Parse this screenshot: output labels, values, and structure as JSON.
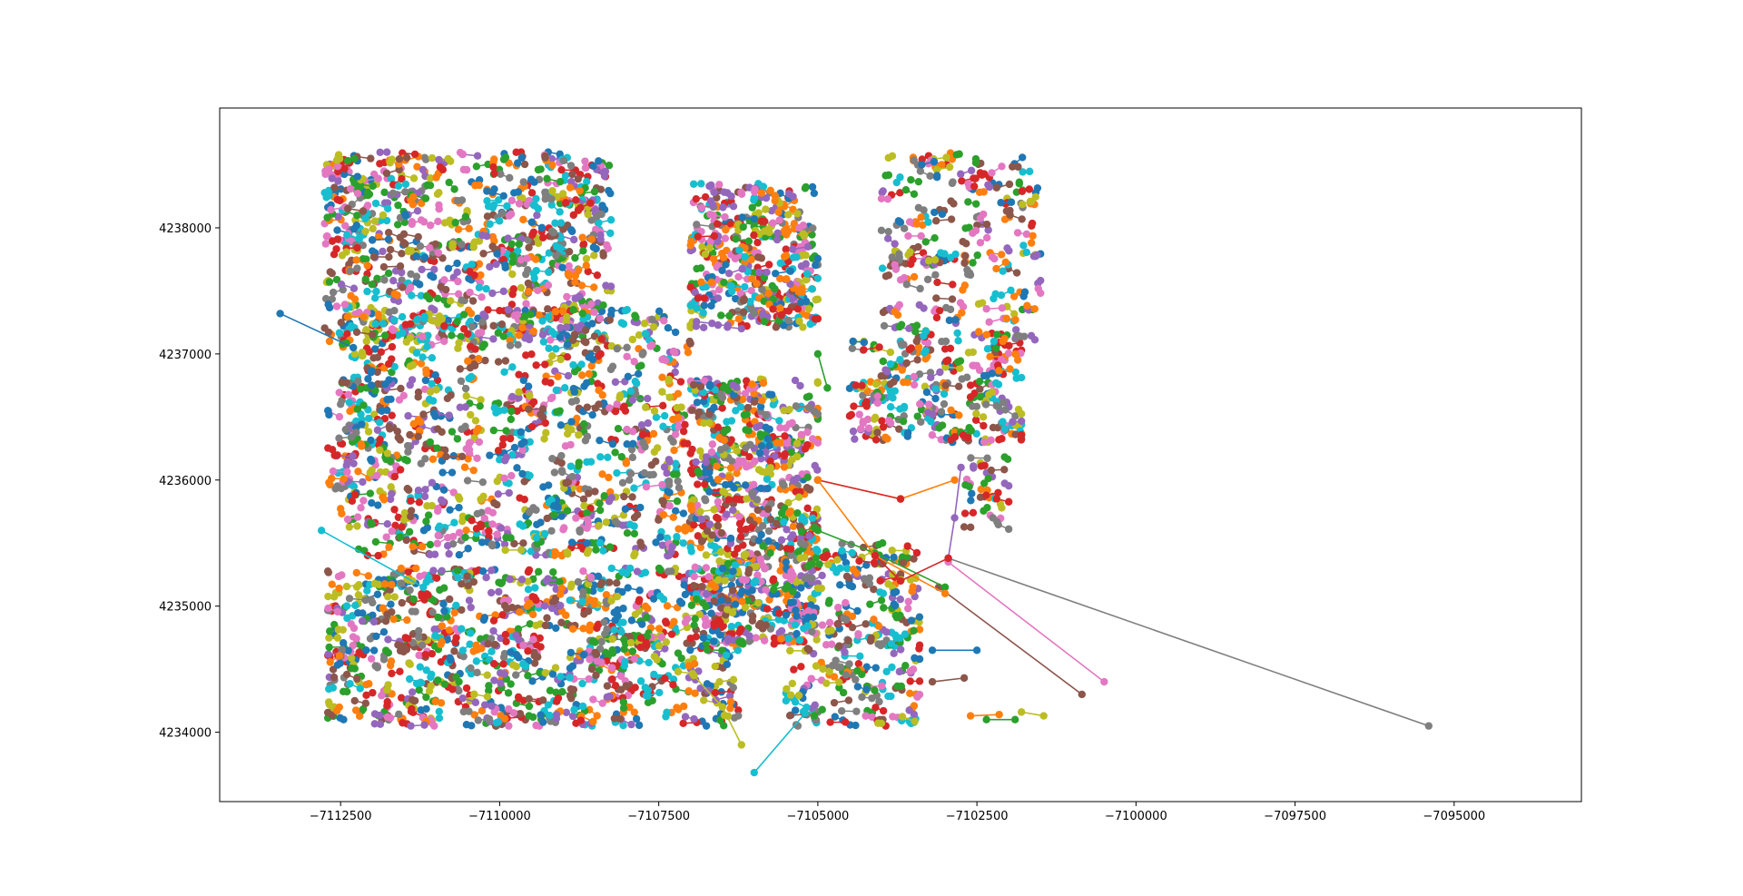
{
  "chart_data": {
    "type": "scatter",
    "title": "",
    "xlabel": "",
    "ylabel": "",
    "xlim": [
      -7114400,
      -7093000
    ],
    "ylim": [
      4233450,
      4238950
    ],
    "grid": false,
    "legend": "none",
    "x_ticks": [
      -7112500,
      -7110000,
      -7107500,
      -7105000,
      -7102500,
      -7100000,
      -7097500,
      -7095000
    ],
    "x_tick_labels": [
      "−7112500",
      "−7110000",
      "−7107500",
      "−7105000",
      "−7102500",
      "−7100000",
      "−7097500",
      "−7095000"
    ],
    "y_ticks": [
      4234000,
      4235000,
      4236000,
      4237000,
      4238000
    ],
    "y_tick_labels": [
      "4234000",
      "4235000",
      "4236000",
      "4237000",
      "4238000"
    ],
    "palette": [
      "#1f77b4",
      "#ff7f0e",
      "#2ca02c",
      "#d62728",
      "#9467bd",
      "#8c564b",
      "#e377c2",
      "#7f7f7f",
      "#bcbd22",
      "#17becf"
    ],
    "series": [
      {
        "color": "#7f7f7f",
        "x": [
          -7102950,
          -7095400
        ],
        "y": [
          4235380,
          4234050
        ]
      },
      {
        "color": "#e377c2",
        "x": [
          -7102950,
          -7100500
        ],
        "y": [
          4235350,
          4234400
        ]
      },
      {
        "color": "#8c564b",
        "x": [
          -7103100,
          -7100850
        ],
        "y": [
          4235150,
          4234300
        ]
      },
      {
        "color": "#1f77b4",
        "x": [
          -7113450,
          -7112300
        ],
        "y": [
          4237320,
          4237050
        ]
      },
      {
        "color": "#17becf",
        "x": [
          -7106000,
          -7105200
        ],
        "y": [
          4233680,
          4234150
        ]
      },
      {
        "color": "#ff7f0e",
        "x": [
          -7105000,
          -7103700,
          -7102850
        ],
        "y": [
          4236000,
          4235850,
          4236000
        ]
      },
      {
        "color": "#d62728",
        "x": [
          -7105000,
          -7103700
        ],
        "y": [
          4236000,
          4235850
        ]
      },
      {
        "color": "#2ca02c",
        "x": [
          -7105000,
          -7104100,
          -7103000
        ],
        "y": [
          4235600,
          4235420,
          4235150
        ]
      },
      {
        "color": "#9467bd",
        "x": [
          -7102950,
          -7102850,
          -7102750
        ],
        "y": [
          4235380,
          4235700,
          4236100
        ]
      },
      {
        "color": "#ff7f0e",
        "x": [
          -7105000,
          -7104100,
          -7103000
        ],
        "y": [
          4236000,
          4235400,
          4235100
        ]
      },
      {
        "color": "#2ca02c",
        "x": [
          -7105000,
          -7104850
        ],
        "y": [
          4237000,
          4236730
        ]
      },
      {
        "color": "#d62728",
        "x": [
          -7104100,
          -7103700,
          -7102950
        ],
        "y": [
          4235400,
          4235200,
          4235380
        ]
      },
      {
        "color": "#ff7f0e",
        "x": [
          -7102600,
          -7102150
        ],
        "y": [
          4234130,
          4234140
        ]
      },
      {
        "color": "#bcbd22",
        "x": [
          -7101800,
          -7101450
        ],
        "y": [
          4234160,
          4234130
        ]
      },
      {
        "color": "#2ca02c",
        "x": [
          -7102350,
          -7101900
        ],
        "y": [
          4234100,
          4234100
        ]
      },
      {
        "color": "#1f77b4",
        "x": [
          -7103200,
          -7102500
        ],
        "y": [
          4234650,
          4234650
        ]
      },
      {
        "color": "#8c564b",
        "x": [
          -7103200,
          -7102700
        ],
        "y": [
          4234400,
          4234430
        ]
      },
      {
        "color": "#17becf",
        "x": [
          -7112800,
          -7111200
        ],
        "y": [
          4235600,
          4235150
        ]
      },
      {
        "color": "#bcbd22",
        "x": [
          -7106200,
          -7106500,
          -7106950
        ],
        "y": [
          4233900,
          4234200,
          4234450
        ]
      }
    ],
    "clusters": [
      {
        "x0": -7112750,
        "x1": -7108250,
        "y0": 4237100,
        "y1": 4238600,
        "n": 520
      },
      {
        "x0": -7112500,
        "x1": -7107000,
        "y0": 4235400,
        "y1": 4237350,
        "n": 580
      },
      {
        "x0": -7112700,
        "x1": -7106250,
        "y0": 4234050,
        "y1": 4235300,
        "n": 620
      },
      {
        "x0": -7107000,
        "x1": -7105000,
        "y0": 4234700,
        "y1": 4236800,
        "n": 460
      },
      {
        "x0": -7107000,
        "x1": -7105000,
        "y0": 4237200,
        "y1": 4238350,
        "n": 250
      },
      {
        "x0": -7105500,
        "x1": -7103400,
        "y0": 4234050,
        "y1": 4235500,
        "n": 200
      },
      {
        "x0": -7104500,
        "x1": -7101800,
        "y0": 4236300,
        "y1": 4237100,
        "n": 170
      },
      {
        "x0": -7104000,
        "x1": -7101500,
        "y0": 4237100,
        "y1": 4238600,
        "n": 170
      },
      {
        "x0": -7112700,
        "x1": -7111700,
        "y0": 4235800,
        "y1": 4237000,
        "n": 60
      },
      {
        "x0": -7102700,
        "x1": -7102000,
        "y0": 4235600,
        "y1": 4236200,
        "n": 25
      }
    ]
  }
}
